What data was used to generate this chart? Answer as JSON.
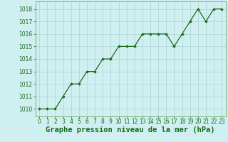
{
  "x": [
    0,
    1,
    2,
    3,
    4,
    5,
    6,
    7,
    8,
    9,
    10,
    11,
    12,
    13,
    14,
    15,
    16,
    17,
    18,
    19,
    20,
    21,
    22,
    23
  ],
  "y": [
    1010,
    1010,
    1010,
    1011,
    1012,
    1012,
    1013,
    1013,
    1014,
    1014,
    1015,
    1015,
    1015,
    1016,
    1016,
    1016,
    1016,
    1015,
    1016,
    1017,
    1018,
    1017,
    1018,
    1018
  ],
  "line_color": "#1a6b1a",
  "marker_color": "#1a6b1a",
  "bg_color": "#d0eff0",
  "grid_color": "#b0d8da",
  "xlabel": "Graphe pression niveau de la mer (hPa)",
  "xlabel_color": "#1a6b1a",
  "ylim": [
    1009.4,
    1018.6
  ],
  "yticks": [
    1010,
    1011,
    1012,
    1013,
    1014,
    1015,
    1016,
    1017,
    1018
  ],
  "xticks": [
    0,
    1,
    2,
    3,
    4,
    5,
    6,
    7,
    8,
    9,
    10,
    11,
    12,
    13,
    14,
    15,
    16,
    17,
    18,
    19,
    20,
    21,
    22,
    23
  ],
  "tick_color": "#1a6b1a",
  "tick_fontsize": 5.5,
  "xlabel_fontsize": 7.5,
  "spine_color": "#5aaa5a"
}
